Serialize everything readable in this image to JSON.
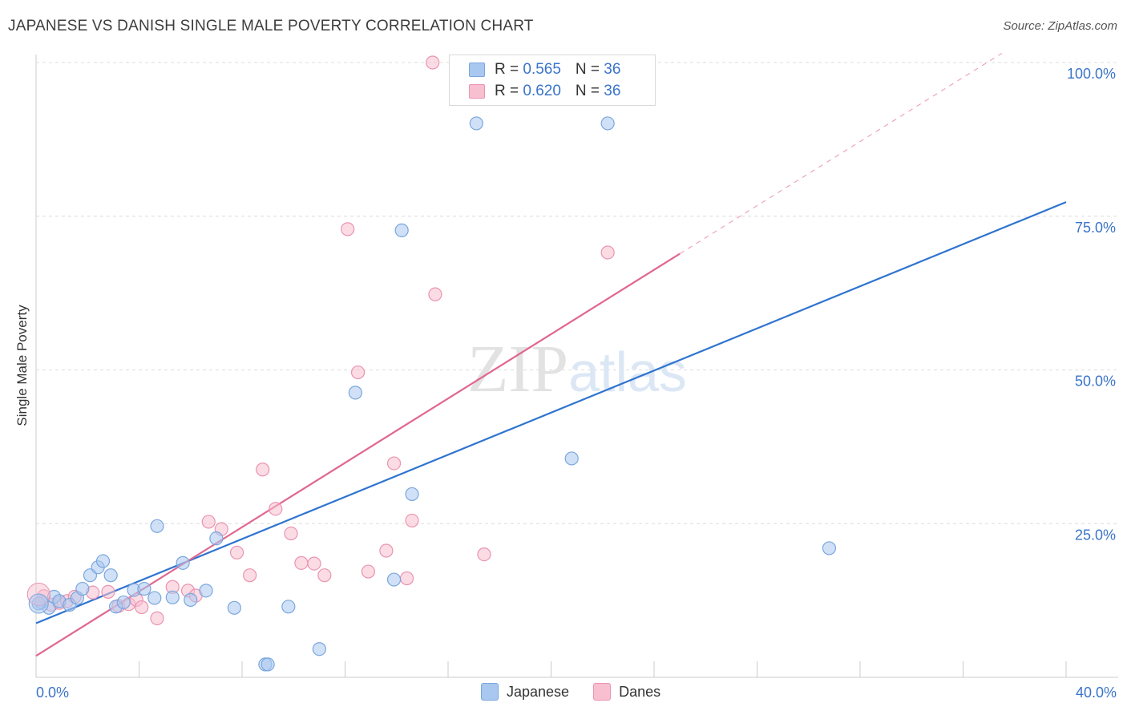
{
  "header": {
    "title": "JAPANESE VS DANISH SINGLE MALE POVERTY CORRELATION CHART",
    "source": "Source: ZipAtlas.com"
  },
  "legend_top": {
    "series1": {
      "r_label": "R = ",
      "r_value": "0.565",
      "n_label": "N = ",
      "n_value": "36"
    },
    "series2": {
      "r_label": "R = ",
      "r_value": "0.620",
      "n_label": "N = ",
      "n_value": "36"
    }
  },
  "legend_bottom": {
    "series1": "Japanese",
    "series2": "Danes"
  },
  "colors": {
    "japanese_fill": "#a9c8f0",
    "japanese_stroke": "#7aa6dd",
    "japanese_line": "#2f74cf",
    "danes_fill": "#f7bfd0",
    "danes_stroke": "#eb93b0",
    "danes_line": "#e0678f",
    "axis_text": "#3a74c9",
    "grid": "#dcdcdc"
  },
  "chart_data": {
    "type": "scatter",
    "title": "JAPANESE VS DANISH SINGLE MALE POVERTY CORRELATION CHART",
    "xlabel": "",
    "ylabel": "Single Male Poverty",
    "xlim": [
      0,
      40
    ],
    "ylim": [
      0,
      100
    ],
    "x_tick_labels": [
      "0.0%",
      "40.0%"
    ],
    "y_tick_labels": [
      "25.0%",
      "50.0%",
      "75.0%",
      "100.0%"
    ],
    "y_ticks": [
      25,
      50,
      75,
      100
    ],
    "watermark": "ZIPatlas",
    "series": [
      {
        "name": "Japanese",
        "r": 0.565,
        "n": 36,
        "points": [
          [
            0.2,
            12.2
          ],
          [
            0.5,
            11.3
          ],
          [
            0.7,
            13.1
          ],
          [
            0.9,
            12.4
          ],
          [
            1.3,
            11.8
          ],
          [
            1.6,
            12.9
          ],
          [
            1.8,
            14.4
          ],
          [
            2.1,
            16.6
          ],
          [
            2.4,
            17.9
          ],
          [
            2.6,
            18.9
          ],
          [
            2.9,
            16.6
          ],
          [
            3.1,
            11.5
          ],
          [
            3.4,
            12.2
          ],
          [
            3.8,
            14.2
          ],
          [
            4.2,
            14.4
          ],
          [
            4.6,
            12.9
          ],
          [
            4.7,
            24.6
          ],
          [
            5.3,
            13.0
          ],
          [
            5.7,
            18.6
          ],
          [
            6.0,
            12.6
          ],
          [
            6.6,
            14.1
          ],
          [
            7.0,
            22.6
          ],
          [
            7.7,
            11.3
          ],
          [
            8.9,
            2.1
          ],
          [
            9.0,
            2.1
          ],
          [
            9.8,
            11.5
          ],
          [
            11.0,
            4.6
          ],
          [
            12.4,
            46.3
          ],
          [
            13.9,
            15.9
          ],
          [
            14.2,
            72.7
          ],
          [
            14.6,
            29.8
          ],
          [
            17.1,
            90.1
          ],
          [
            20.8,
            35.6
          ],
          [
            22.2,
            90.1
          ],
          [
            30.8,
            21.0
          ],
          [
            0.1,
            12.0
          ]
        ],
        "trend": {
          "x0": 0,
          "y0": 8.8,
          "x1": 40,
          "y1": 77.3
        }
      },
      {
        "name": "Danes",
        "r": 0.62,
        "n": 36,
        "points": [
          [
            0.3,
            13.2
          ],
          [
            0.6,
            11.8
          ],
          [
            0.9,
            12.1
          ],
          [
            1.2,
            12.4
          ],
          [
            1.5,
            13.1
          ],
          [
            2.2,
            13.8
          ],
          [
            2.8,
            13.9
          ],
          [
            3.2,
            11.6
          ],
          [
            3.6,
            11.9
          ],
          [
            3.9,
            12.6
          ],
          [
            4.1,
            11.4
          ],
          [
            4.7,
            9.6
          ],
          [
            5.3,
            14.7
          ],
          [
            5.9,
            14.1
          ],
          [
            6.2,
            13.3
          ],
          [
            6.7,
            25.3
          ],
          [
            7.2,
            24.1
          ],
          [
            7.8,
            20.3
          ],
          [
            8.3,
            16.6
          ],
          [
            8.8,
            33.8
          ],
          [
            9.3,
            27.4
          ],
          [
            9.9,
            23.4
          ],
          [
            10.3,
            18.6
          ],
          [
            10.8,
            18.5
          ],
          [
            11.2,
            16.6
          ],
          [
            12.1,
            72.9
          ],
          [
            12.5,
            49.6
          ],
          [
            12.9,
            17.2
          ],
          [
            13.6,
            20.6
          ],
          [
            13.9,
            34.8
          ],
          [
            14.4,
            16.1
          ],
          [
            14.6,
            25.5
          ],
          [
            15.5,
            62.3
          ],
          [
            15.4,
            100.0
          ],
          [
            17.4,
            20.0
          ],
          [
            22.2,
            69.1
          ]
        ],
        "trend": {
          "x0": 0,
          "y0": 3.5,
          "x1": 25.0,
          "y1": 68.9
        },
        "trend_extension": {
          "x0": 25.0,
          "y0": 68.9,
          "x1": 40,
          "y1": 108.0
        }
      }
    ],
    "legend_position": "top-center"
  }
}
